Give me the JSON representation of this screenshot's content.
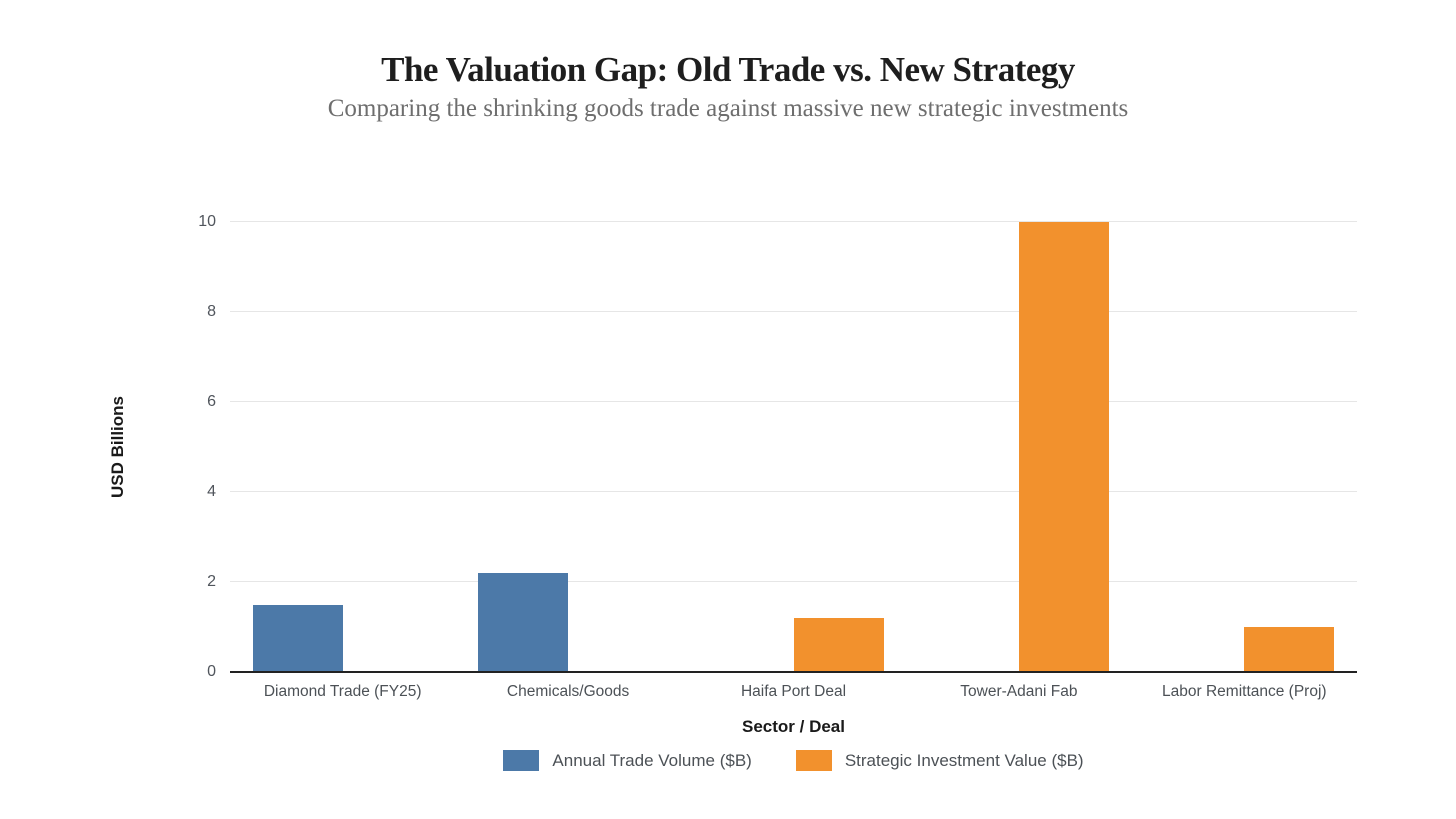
{
  "page": {
    "background": "#ffffff"
  },
  "chart_data": {
    "type": "bar",
    "title": "The Valuation Gap: Old Trade vs. New Strategy",
    "subtitle": "Comparing the shrinking goods trade against massive new strategic investments",
    "xlabel": "Sector / Deal",
    "ylabel": "USD Billions",
    "categories": [
      "Diamond Trade (FY25)",
      "Chemicals/Goods",
      "Haifa Port Deal",
      "Tower-Adani Fab",
      "Labor Remittance (Proj)"
    ],
    "series": [
      {
        "name": "Annual Trade Volume ($B)",
        "color": "#4C79A8",
        "values": [
          1.5,
          2.2,
          0,
          0,
          0
        ]
      },
      {
        "name": "Strategic Investment Value ($B)",
        "color": "#F2912D",
        "values": [
          0,
          0,
          1.2,
          10,
          1.0
        ]
      }
    ],
    "ylim": [
      0,
      10
    ],
    "yticks": [
      0,
      2,
      4,
      6,
      8,
      10
    ],
    "grid": true,
    "legend_position": "bottom",
    "styles": {
      "gridline_color": "#e6e6e6",
      "axis_line_color": "#222222",
      "tick_label_color": "#50555c",
      "title_color": "#1e1e1e",
      "subtitle_color": "#6e6e6e"
    }
  }
}
